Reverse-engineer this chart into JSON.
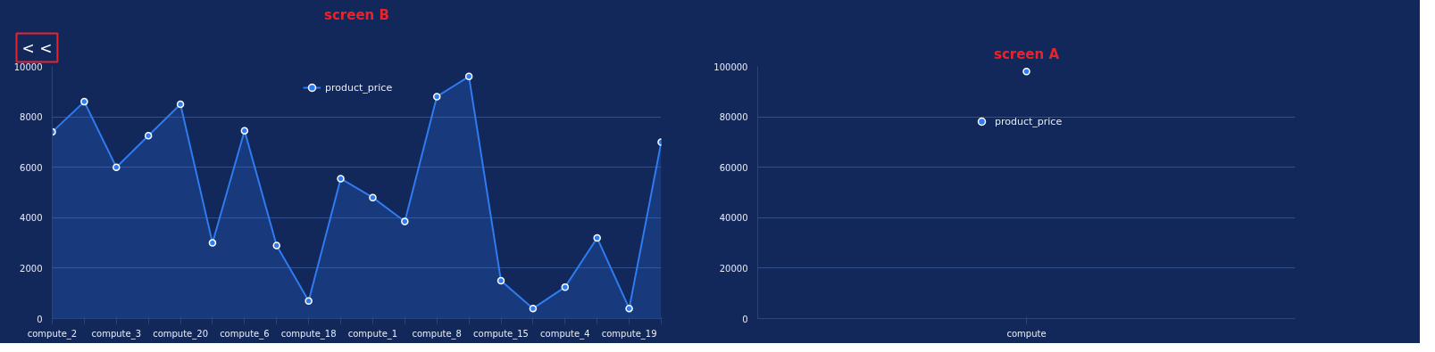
{
  "chart_data": [
    {
      "type": "area",
      "title": "screen B",
      "annotations": [
        "< <"
      ],
      "legend": "top",
      "marker": "circle",
      "grid": "y",
      "categories": [
        "compute_2",
        null,
        "compute_3",
        null,
        "compute_20",
        null,
        "compute_6",
        null,
        "compute_18",
        null,
        "compute_1",
        null,
        "compute_8",
        null,
        "compute_15",
        null,
        "compute_4",
        null,
        "compute_19",
        null
      ],
      "series": [
        {
          "name": "product_price",
          "color": "#2f7bf0",
          "values": [
            7400,
            8600,
            6000,
            7250,
            8500,
            3000,
            7450,
            2900,
            700,
            5550,
            4800,
            3850,
            8800,
            9600,
            1500,
            400,
            1250,
            3200,
            400,
            7000
          ]
        }
      ],
      "ylim": [
        0,
        10000
      ],
      "yticks": [
        0,
        2000,
        4000,
        6000,
        8000,
        10000
      ]
    },
    {
      "type": "line",
      "title": "screen A",
      "legend": "top",
      "marker": "circle",
      "grid": "y",
      "categories": [
        "compute"
      ],
      "series": [
        {
          "name": "product_price",
          "color": "#2f7bf0",
          "values": [
            98000
          ]
        }
      ],
      "ylim": [
        0,
        100000
      ],
      "yticks": [
        0,
        20000,
        40000,
        60000,
        80000,
        100000
      ]
    }
  ]
}
